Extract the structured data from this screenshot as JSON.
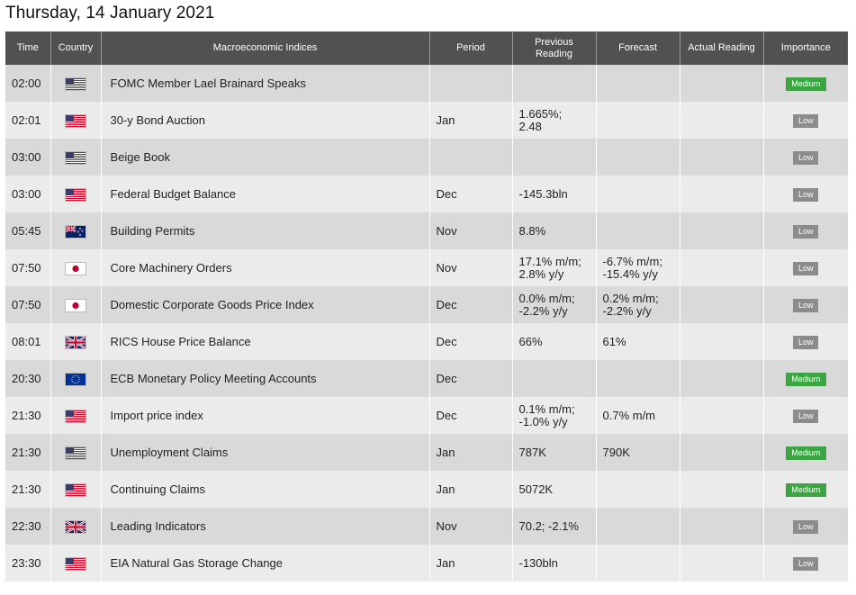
{
  "title": "Thursday, 14 January 2021",
  "columns": {
    "time": "Time",
    "country": "Country",
    "index": "Macroeconomic Indices",
    "period": "Period",
    "previous_1": "Previous",
    "previous_2": "Reading",
    "forecast": "Forecast",
    "actual": "Actual Reading",
    "importance": "Importance"
  },
  "rows": [
    {
      "time": "02:00",
      "country": "us-flag-icon",
      "index": "FOMC Member Lael Brainard Speaks",
      "period": "",
      "previous": [
        "",
        ""
      ],
      "forecast": [
        "",
        ""
      ],
      "actual": "",
      "importance": "Medium"
    },
    {
      "time": "02:01",
      "country": "us-flag-icon",
      "index": "30-y Bond Auction",
      "period": "Jan",
      "previous": [
        "1.665%;",
        "2.48"
      ],
      "forecast": [
        "",
        ""
      ],
      "actual": "",
      "importance": "Low"
    },
    {
      "time": "03:00",
      "country": "us-flag-icon",
      "index": "Beige Book",
      "period": "",
      "previous": [
        "",
        ""
      ],
      "forecast": [
        "",
        ""
      ],
      "actual": "",
      "importance": "Low"
    },
    {
      "time": "03:00",
      "country": "us-flag-icon",
      "index": "Federal Budget Balance",
      "period": "Dec",
      "previous": [
        "-145.3bln",
        ""
      ],
      "forecast": [
        "",
        ""
      ],
      "actual": "",
      "importance": "Low"
    },
    {
      "time": "05:45",
      "country": "nz-flag-icon",
      "index": "Building Permits",
      "period": "Nov",
      "previous": [
        "8.8%",
        ""
      ],
      "forecast": [
        "",
        ""
      ],
      "actual": "",
      "importance": "Low"
    },
    {
      "time": "07:50",
      "country": "jp-flag-icon",
      "index": "Core Machinery Orders",
      "period": "Nov",
      "previous": [
        "17.1% m/m;",
        "2.8% y/y"
      ],
      "forecast": [
        "-6.7% m/m;",
        "-15.4% y/y"
      ],
      "actual": "",
      "importance": "Low"
    },
    {
      "time": "07:50",
      "country": "jp-flag-icon",
      "index": "Domestic Corporate Goods Price Index",
      "period": "Dec",
      "previous": [
        "0.0% m/m;",
        "-2.2% y/y"
      ],
      "forecast": [
        "0.2% m/m;",
        "-2.2% y/y"
      ],
      "actual": "",
      "importance": "Low"
    },
    {
      "time": "08:01",
      "country": "uk-flag-icon",
      "index": "RICS House Price Balance",
      "period": "Dec",
      "previous": [
        "66%",
        ""
      ],
      "forecast": [
        "61%",
        ""
      ],
      "actual": "",
      "importance": "Low"
    },
    {
      "time": "20:30",
      "country": "eu-flag-icon",
      "index": "ECB Monetary Policy Meeting Accounts",
      "period": "Dec",
      "previous": [
        "",
        ""
      ],
      "forecast": [
        "",
        ""
      ],
      "actual": "",
      "importance": "Medium"
    },
    {
      "time": "21:30",
      "country": "us-flag-icon",
      "index": "Import price index",
      "period": "Dec",
      "previous": [
        "0.1% m/m;",
        "-1.0% y/y"
      ],
      "forecast": [
        "0.7% m/m",
        ""
      ],
      "actual": "",
      "importance": "Low"
    },
    {
      "time": "21:30",
      "country": "us-flag-icon",
      "index": "Unemployment Claims",
      "period": "Jan",
      "previous": [
        "787K",
        ""
      ],
      "forecast": [
        "790K",
        ""
      ],
      "actual": "",
      "importance": "Medium"
    },
    {
      "time": "21:30",
      "country": "us-flag-icon",
      "index": "Continuing Claims",
      "period": "Jan",
      "previous": [
        "5072K",
        ""
      ],
      "forecast": [
        "",
        ""
      ],
      "actual": "",
      "importance": "Medium"
    },
    {
      "time": "22:30",
      "country": "uk-flag-icon",
      "index": "Leading Indicators",
      "period": "Nov",
      "previous": [
        "70.2; -2.1%",
        ""
      ],
      "forecast": [
        "",
        ""
      ],
      "actual": "",
      "importance": "Low"
    },
    {
      "time": "23:30",
      "country": "us-flag-icon",
      "index": "EIA Natural Gas Storage Change",
      "period": "Jan",
      "previous": [
        "-130bln",
        ""
      ],
      "forecast": [
        "",
        ""
      ],
      "actual": "",
      "importance": "Low"
    }
  ],
  "colors": {
    "header_bg": "#515151",
    "row_even": "#d9d9d9",
    "row_odd": "#ebebeb",
    "medium": "#3aa541",
    "low": "#8c8c8c"
  }
}
